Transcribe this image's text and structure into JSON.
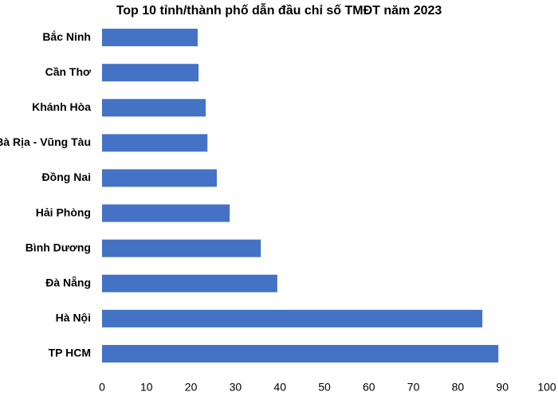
{
  "chart_data": {
    "type": "bar",
    "orientation": "horizontal",
    "title": "Top 10 tỉnh/thành phố dẫn đầu chỉ số TMĐT năm 2023",
    "categories": [
      "Bắc Ninh",
      "Cần Thơ",
      "Khánh Hòa",
      "Bà Rịa - Vũng Tàu",
      "Đồng Nai",
      "Hải Phòng",
      "Bình Dương",
      "Đà Nẵng",
      "Hà Nội",
      "TP HCM"
    ],
    "values": [
      21.5,
      21.7,
      23.3,
      23.7,
      25.8,
      28.7,
      35.7,
      39.4,
      85.5,
      89.1
    ],
    "color": "#4472c4",
    "xlim": [
      0,
      100
    ],
    "xticks": [
      0,
      10,
      20,
      30,
      40,
      50,
      60,
      70,
      80,
      90,
      100
    ],
    "grid": false
  }
}
